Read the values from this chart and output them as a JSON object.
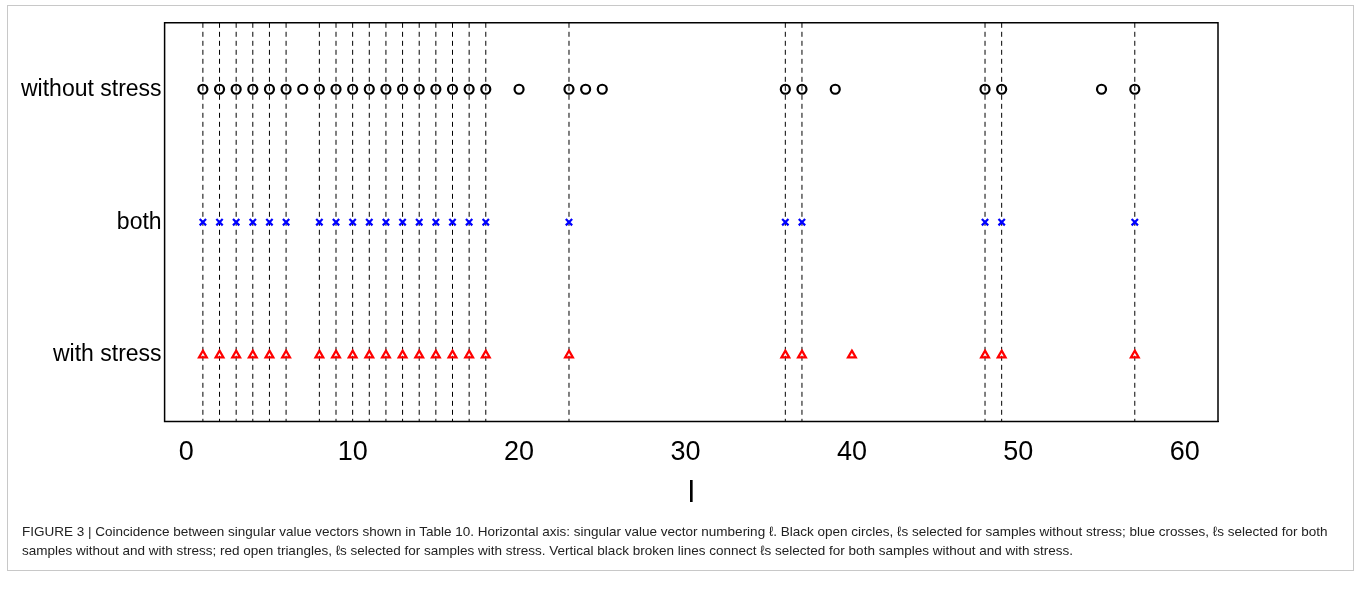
{
  "chart_data": {
    "type": "scatter",
    "orientation": "horizontal",
    "xlabel": "l",
    "categories": [
      "without stress",
      "both",
      "with stress"
    ],
    "xlim": [
      -1.3,
      62
    ],
    "xticks": [
      0,
      10,
      20,
      30,
      40,
      50,
      60
    ],
    "grid": false,
    "legend": false,
    "series": [
      {
        "color": "#000000",
        "marker": "circle",
        "values": [
          1,
          2,
          3,
          4,
          5,
          6,
          7,
          8,
          9,
          10,
          11,
          12,
          13,
          14,
          15,
          16,
          17,
          18,
          20,
          23,
          24,
          25,
          36,
          37,
          39,
          48,
          49,
          55,
          57
        ],
        "x": [
          "without stress",
          "without stress",
          "without stress",
          "without stress",
          "without stress",
          "without stress",
          "without stress",
          "without stress",
          "without stress",
          "without stress",
          "without stress",
          "without stress",
          "without stress",
          "without stress",
          "without stress",
          "without stress",
          "without stress",
          "without stress",
          "without stress",
          "without stress",
          "without stress",
          "without stress",
          "without stress",
          "without stress",
          "without stress",
          "without stress",
          "without stress",
          "without stress",
          "without stress"
        ]
      },
      {
        "color": "#0000ff",
        "marker": "cross",
        "values": [
          1,
          2,
          3,
          4,
          5,
          6,
          8,
          9,
          10,
          11,
          12,
          13,
          14,
          15,
          16,
          17,
          18,
          23,
          36,
          37,
          48,
          49,
          57
        ],
        "x": [
          "both",
          "both",
          "both",
          "both",
          "both",
          "both",
          "both",
          "both",
          "both",
          "both",
          "both",
          "both",
          "both",
          "both",
          "both",
          "both",
          "both",
          "both",
          "both",
          "both",
          "both",
          "both",
          "both"
        ]
      },
      {
        "color": "#ff0000",
        "marker": "triangle",
        "values": [
          1,
          2,
          3,
          4,
          5,
          6,
          8,
          9,
          10,
          11,
          12,
          13,
          14,
          15,
          16,
          17,
          18,
          23,
          36,
          37,
          40,
          48,
          49,
          57
        ],
        "x": [
          "with stress",
          "with stress",
          "with stress",
          "with stress",
          "with stress",
          "with stress",
          "with stress",
          "with stress",
          "with stress",
          "with stress",
          "with stress",
          "with stress",
          "with stress",
          "with stress",
          "with stress",
          "with stress",
          "with stress",
          "with stress",
          "with stress",
          "with stress",
          "with stress",
          "with stress",
          "with stress",
          "with stress"
        ]
      }
    ],
    "ref_lines": [
      {
        "axis": "x",
        "value": 1,
        "color": "#000000",
        "line_style": "dashed"
      },
      {
        "axis": "x",
        "value": 2,
        "color": "#000000",
        "line_style": "dashed"
      },
      {
        "axis": "x",
        "value": 3,
        "color": "#000000",
        "line_style": "dashed"
      },
      {
        "axis": "x",
        "value": 4,
        "color": "#000000",
        "line_style": "dashed"
      },
      {
        "axis": "x",
        "value": 5,
        "color": "#000000",
        "line_style": "dashed"
      },
      {
        "axis": "x",
        "value": 6,
        "color": "#000000",
        "line_style": "dashed"
      },
      {
        "axis": "x",
        "value": 8,
        "color": "#000000",
        "line_style": "dashed"
      },
      {
        "axis": "x",
        "value": 9,
        "color": "#000000",
        "line_style": "dashed"
      },
      {
        "axis": "x",
        "value": 10,
        "color": "#000000",
        "line_style": "dashed"
      },
      {
        "axis": "x",
        "value": 11,
        "color": "#000000",
        "line_style": "dashed"
      },
      {
        "axis": "x",
        "value": 12,
        "color": "#000000",
        "line_style": "dashed"
      },
      {
        "axis": "x",
        "value": 13,
        "color": "#000000",
        "line_style": "dashed"
      },
      {
        "axis": "x",
        "value": 14,
        "color": "#000000",
        "line_style": "dashed"
      },
      {
        "axis": "x",
        "value": 15,
        "color": "#000000",
        "line_style": "dashed"
      },
      {
        "axis": "x",
        "value": 16,
        "color": "#000000",
        "line_style": "dashed"
      },
      {
        "axis": "x",
        "value": 17,
        "color": "#000000",
        "line_style": "dashed"
      },
      {
        "axis": "x",
        "value": 18,
        "color": "#000000",
        "line_style": "dashed"
      },
      {
        "axis": "x",
        "value": 23,
        "color": "#000000",
        "line_style": "dashed"
      },
      {
        "axis": "x",
        "value": 36,
        "color": "#000000",
        "line_style": "dashed"
      },
      {
        "axis": "x",
        "value": 37,
        "color": "#000000",
        "line_style": "dashed"
      },
      {
        "axis": "x",
        "value": 48,
        "color": "#000000",
        "line_style": "dashed"
      },
      {
        "axis": "x",
        "value": 49,
        "color": "#000000",
        "line_style": "dashed"
      },
      {
        "axis": "x",
        "value": 57,
        "color": "#000000",
        "line_style": "dashed"
      }
    ],
    "annotations": [
      "FIGURE 3 | Coincidence between singular value vectors shown in Table 10. Horizontal axis: singular value vector numbering ℓ. Black open circles, ℓs selected for samples without stress; blue crosses, ℓs selected for both samples without and with stress; red open triangles, ℓs selected for samples with stress. Vertical black broken lines connect ℓs selected for both samples without and with stress."
    ]
  }
}
